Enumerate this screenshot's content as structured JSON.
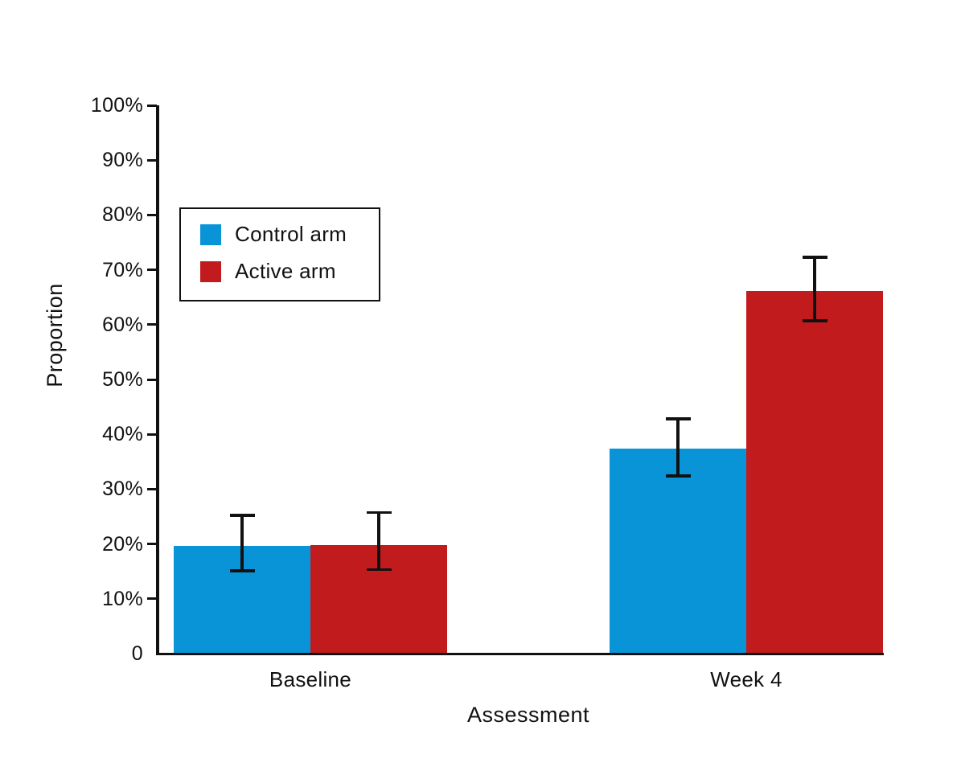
{
  "figure": {
    "background": "#ffffff",
    "axis_color": "#111111"
  },
  "chart_data": {
    "type": "bar",
    "title": "",
    "xlabel": "Assessment",
    "ylabel": "Proportion",
    "categories": [
      "Baseline",
      "Week 4"
    ],
    "series": [
      {
        "name": "Control arm",
        "color": "#0994d8",
        "values": [
          19.6,
          37.4
        ],
        "error_low": [
          15.1,
          32.4
        ],
        "error_high": [
          25.2,
          42.8
        ]
      },
      {
        "name": "Active arm",
        "color": "#c21b1e",
        "values": [
          19.8,
          66.1
        ],
        "error_low": [
          15.3,
          60.7
        ],
        "error_high": [
          25.7,
          72.3
        ]
      }
    ],
    "ylim": [
      0,
      100
    ],
    "yticks": [
      {
        "value": 0,
        "label": "0"
      },
      {
        "value": 10,
        "label": "10%"
      },
      {
        "value": 20,
        "label": "20%"
      },
      {
        "value": 30,
        "label": "30%"
      },
      {
        "value": 40,
        "label": "40%"
      },
      {
        "value": 50,
        "label": "50%"
      },
      {
        "value": 60,
        "label": "60%"
      },
      {
        "value": 70,
        "label": "70%"
      },
      {
        "value": 80,
        "label": "80%"
      },
      {
        "value": 90,
        "label": "90%"
      },
      {
        "value": 100,
        "label": "100%"
      }
    ],
    "grid": false,
    "error_bars": true,
    "legend_position": "upper-left-inside"
  }
}
